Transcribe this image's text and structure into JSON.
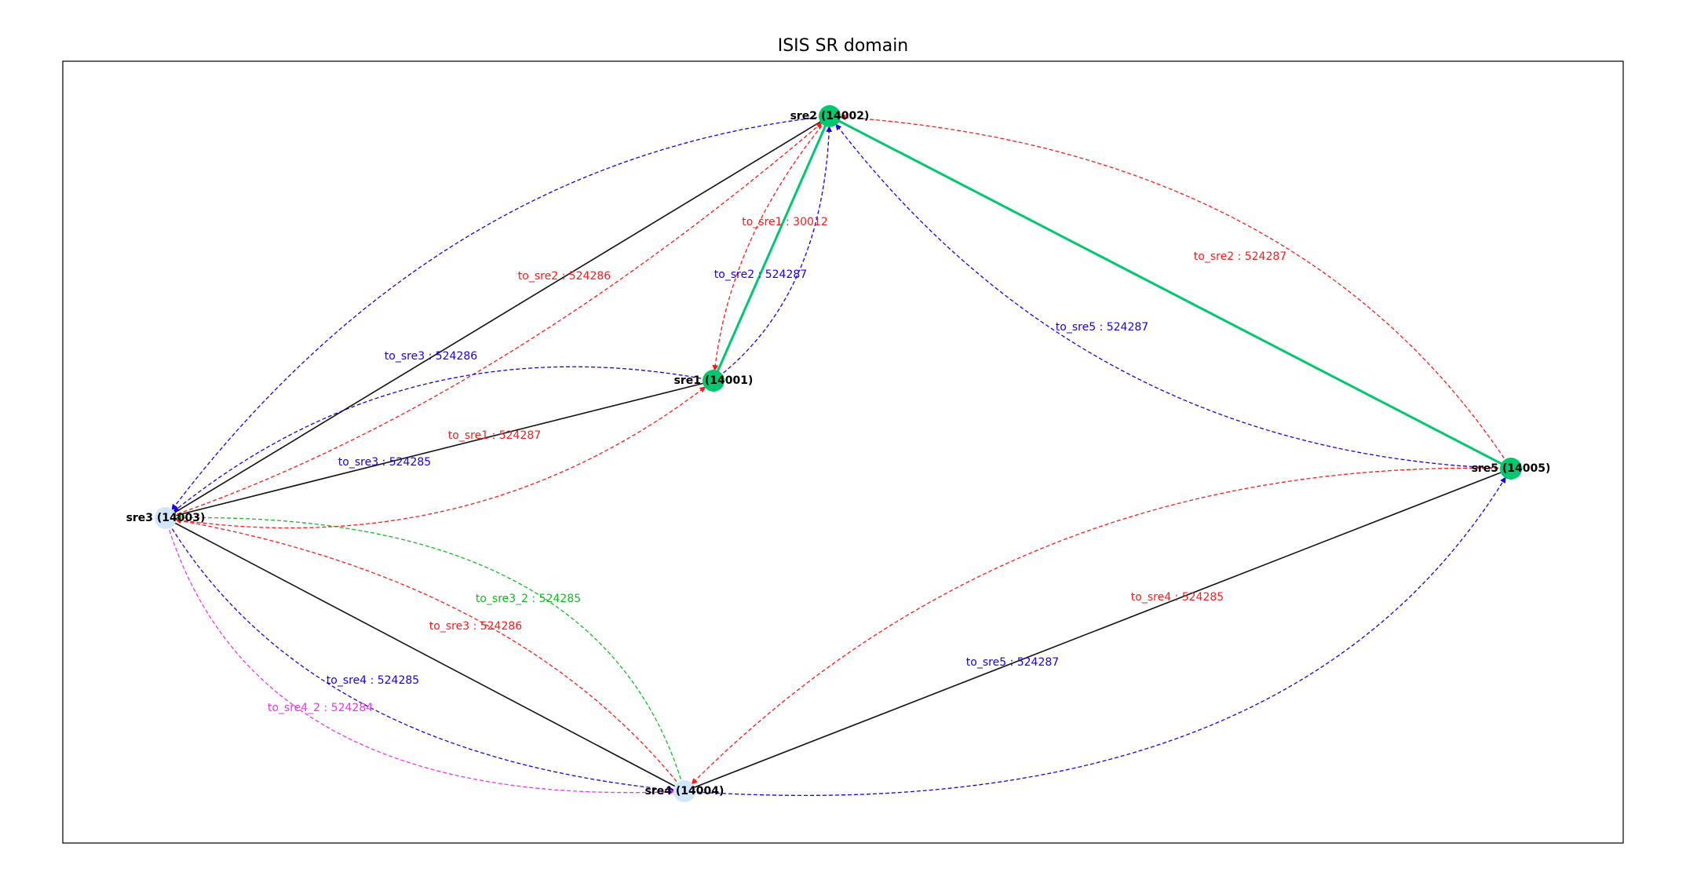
{
  "title": "ISIS SR domain",
  "colors": {
    "node_green": "#00c86f",
    "node_light": "#cfe6fb",
    "link_black": "#111111",
    "link_green": "#00c86f",
    "tunnel_red": "#ff1a1a",
    "tunnel_blue": "#1a00e6",
    "tunnel_green": "#11bb22",
    "tunnel_magenta": "#ee33ee"
  },
  "nodes": [
    {
      "id": "sre1",
      "label": "sre1 (14001)",
      "style": "green"
    },
    {
      "id": "sre2",
      "label": "sre2 (14002)",
      "style": "green"
    },
    {
      "id": "sre3",
      "label": "sre3 (14003)",
      "style": "light"
    },
    {
      "id": "sre4",
      "label": "sre4 (14004)",
      "style": "light"
    },
    {
      "id": "sre5",
      "label": "sre5 (14005)",
      "style": "green"
    }
  ],
  "links": [
    {
      "from": "sre3",
      "to": "sre2",
      "style": "black"
    },
    {
      "from": "sre3",
      "to": "sre1",
      "style": "black"
    },
    {
      "from": "sre3",
      "to": "sre4",
      "style": "black"
    },
    {
      "from": "sre4",
      "to": "sre5",
      "style": "black"
    },
    {
      "from": "sre1",
      "to": "sre2",
      "style": "green"
    },
    {
      "from": "sre2",
      "to": "sre5",
      "style": "green"
    }
  ],
  "tunnels": [
    {
      "label": "to_sre1 : 30012",
      "color": "red"
    },
    {
      "label": "to_sre2 : 524287",
      "color": "blue"
    },
    {
      "label": "to_sre2 : 524286",
      "color": "red"
    },
    {
      "label": "to_sre3 : 524286",
      "color": "blue"
    },
    {
      "label": "to_sre1 : 524287",
      "color": "red"
    },
    {
      "label": "to_sre3 : 524285",
      "color": "blue"
    },
    {
      "label": "to_sre2 : 524287",
      "color": "red"
    },
    {
      "label": "to_sre5 : 524287",
      "color": "blue"
    },
    {
      "label": "to_sre3_2 : 524285",
      "color": "green"
    },
    {
      "label": "to_sre3 : 524286",
      "color": "red"
    },
    {
      "label": "to_sre4 : 524285",
      "color": "blue"
    },
    {
      "label": "to_sre4_2 : 524284",
      "color": "magenta"
    },
    {
      "label": "to_sre4 : 524285",
      "color": "red"
    },
    {
      "label": "to_sre5 : 524287",
      "color": "blue"
    }
  ]
}
